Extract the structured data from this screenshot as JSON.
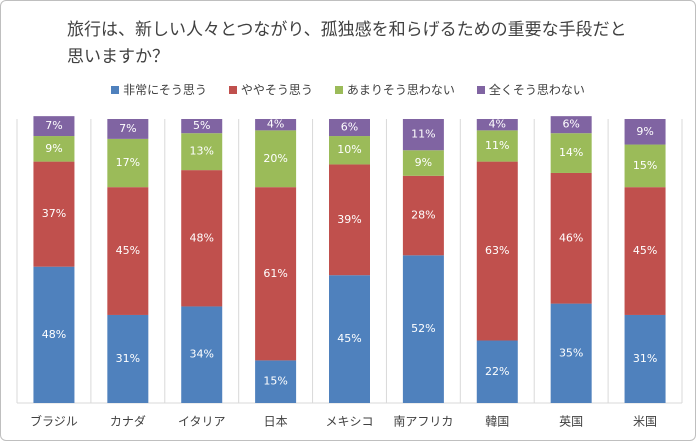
{
  "chart_data": {
    "type": "stacked-bar-100",
    "title": "旅行は、新しい人々とつながり、孤独感を和らげるための重要な手段だと思いますか？",
    "categories": [
      "ブラジル",
      "カナダ",
      "イタリア",
      "日本",
      "メキシコ",
      "南アフリカ",
      "韓国",
      "英国",
      "米国"
    ],
    "series": [
      {
        "name": "非常にそう思う",
        "color": "#4f81bd",
        "values": [
          48,
          31,
          34,
          15,
          45,
          52,
          22,
          35,
          31
        ],
        "value_labels": [
          "48%",
          "31%",
          "34%",
          "15%",
          "45%",
          "52%",
          "22%",
          "35%",
          "31%"
        ]
      },
      {
        "name": "ややそう思う",
        "color": "#c0504d",
        "values": [
          37,
          45,
          48,
          61,
          39,
          28,
          63,
          46,
          45
        ],
        "value_labels": [
          "37%",
          "45%",
          "48%",
          "61%",
          "39%",
          "28%",
          "63%",
          "46%",
          "45%"
        ]
      },
      {
        "name": "あまりそう思わない",
        "color": "#9bbb59",
        "values": [
          9,
          17,
          13,
          20,
          10,
          9,
          11,
          14,
          15
        ],
        "value_labels": [
          "9%",
          "17%",
          "13%",
          "20%",
          "10%",
          "9%",
          "11%",
          "14%",
          "15%"
        ]
      },
      {
        "name": "全くそう思わない",
        "color": "#8064a2",
        "values": [
          7,
          7,
          5,
          4,
          6,
          11,
          4,
          6,
          9
        ],
        "value_labels": [
          "7%",
          "7%",
          "5%",
          "4%",
          "6%",
          "11%",
          "4%",
          "6%",
          "9%"
        ]
      }
    ]
  }
}
